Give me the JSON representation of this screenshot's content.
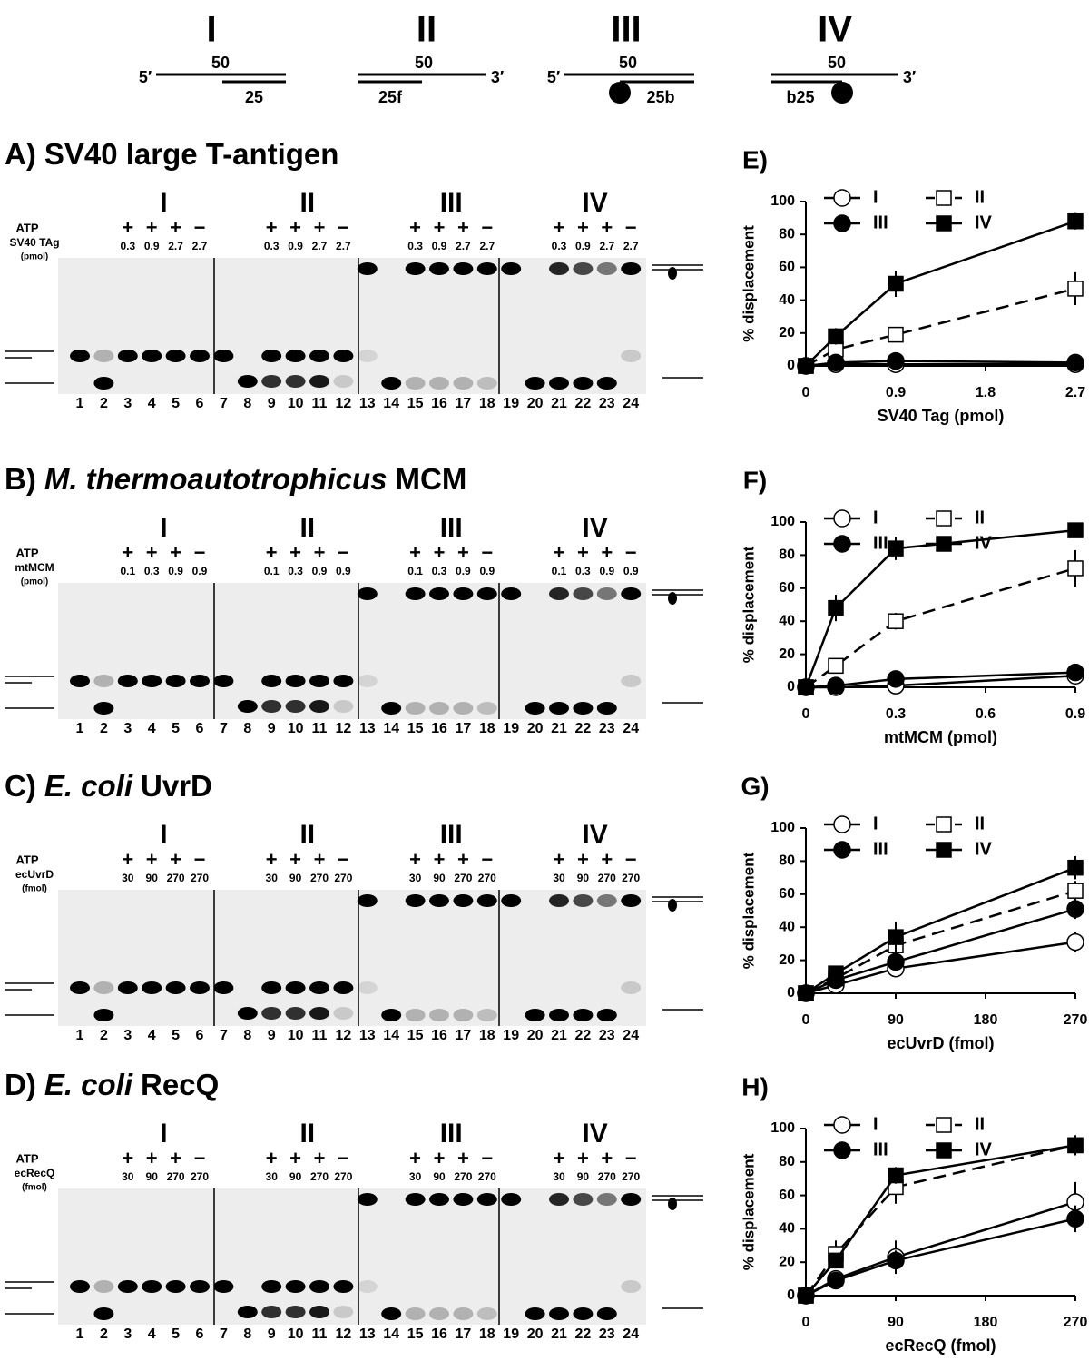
{
  "substrates": [
    {
      "label": "I",
      "five": "5′",
      "top": "50",
      "bottom": "25"
    },
    {
      "label": "II",
      "three": "3′",
      "top": "50",
      "bottom": "25f"
    },
    {
      "label": "III",
      "five": "5′",
      "top": "50",
      "bottom": "25b"
    },
    {
      "label": "IV",
      "three": "3′",
      "top": "50",
      "bottom": "b25"
    }
  ],
  "gel": {
    "groups": [
      "I",
      "II",
      "III",
      "IV"
    ],
    "atp": "ATP",
    "signs": [
      "+",
      "+",
      "+",
      "−"
    ],
    "lanes": [
      1,
      2,
      3,
      4,
      5,
      6,
      7,
      8,
      9,
      10,
      11,
      12,
      13,
      14,
      15,
      16,
      17,
      18,
      19,
      20,
      21,
      22,
      23,
      24
    ]
  },
  "panels": [
    {
      "letter": "A)",
      "title": "SV40 large T-antigen",
      "protein": "SV40 TAg",
      "unit": "(pmol)",
      "amounts": [
        "0.3",
        "0.9",
        "2.7",
        "2.7"
      ]
    },
    {
      "letter": "B)",
      "title_italic": "M. thermoautotrophicus",
      "title": "MCM",
      "protein": "mtMCM",
      "unit": "(pmol)",
      "amounts": [
        "0.1",
        "0.3",
        "0.9",
        "0.9"
      ]
    },
    {
      "letter": "C)",
      "title_italic": "E. coli",
      "title": "UvrD",
      "protein": "ecUvrD",
      "unit": "(fmol)",
      "amounts": [
        "30",
        "90",
        "270",
        "270"
      ]
    },
    {
      "letter": "D)",
      "title_italic": "E. coli",
      "title": "RecQ",
      "protein": "ecRecQ",
      "unit": "(fmol)",
      "amounts": [
        "30",
        "90",
        "270",
        "270"
      ]
    }
  ],
  "chart_data": [
    {
      "type": "line",
      "title": "E)",
      "xlabel": "SV40 Tag (pmol)",
      "ylabel": "% displacement",
      "x": [
        0,
        0.3,
        0.9,
        2.7
      ],
      "xlim": [
        0,
        2.7
      ],
      "xticks": [
        0,
        0.9,
        1.8,
        2.7
      ],
      "ylim": [
        0,
        100
      ],
      "yticks": [
        0,
        20,
        40,
        60,
        80,
        100
      ],
      "series": [
        {
          "name": "I",
          "color": "#000000",
          "marker": "circle",
          "filled": false,
          "dashed": false,
          "values": [
            0,
            1,
            1,
            1
          ],
          "errors": [
            0,
            1,
            1,
            1
          ]
        },
        {
          "name": "II",
          "color": "#000000",
          "marker": "square",
          "filled": false,
          "dashed": true,
          "values": [
            0,
            10,
            19,
            47
          ],
          "errors": [
            0,
            3,
            3,
            10
          ]
        },
        {
          "name": "III",
          "color": "#000000",
          "marker": "circle",
          "filled": true,
          "dashed": false,
          "values": [
            0,
            2,
            3,
            2
          ],
          "errors": [
            0,
            1,
            1,
            1
          ]
        },
        {
          "name": "IV",
          "color": "#000000",
          "marker": "square",
          "filled": true,
          "dashed": false,
          "values": [
            0,
            18,
            50,
            88
          ],
          "errors": [
            0,
            5,
            8,
            5
          ]
        }
      ]
    },
    {
      "type": "line",
      "title": "F)",
      "xlabel": "mtMCM (pmol)",
      "ylabel": "% displacement",
      "x": [
        0,
        0.1,
        0.3,
        0.9
      ],
      "xlim": [
        0,
        0.9
      ],
      "xticks": [
        0,
        0.3,
        0.6,
        0.9
      ],
      "ylim": [
        0,
        100
      ],
      "yticks": [
        0,
        20,
        40,
        60,
        80,
        100
      ],
      "series": [
        {
          "name": "I",
          "color": "#000000",
          "marker": "circle",
          "filled": false,
          "dashed": false,
          "values": [
            0,
            0,
            1,
            7
          ],
          "errors": [
            0,
            1,
            1,
            2
          ]
        },
        {
          "name": "II",
          "color": "#000000",
          "marker": "square",
          "filled": false,
          "dashed": true,
          "values": [
            0,
            13,
            40,
            72
          ],
          "errors": [
            0,
            3,
            5,
            11
          ]
        },
        {
          "name": "III",
          "color": "#000000",
          "marker": "circle",
          "filled": true,
          "dashed": false,
          "values": [
            0,
            1,
            5,
            9
          ],
          "errors": [
            0,
            1,
            2,
            2
          ]
        },
        {
          "name": "IV",
          "color": "#000000",
          "marker": "square",
          "filled": true,
          "dashed": false,
          "values": [
            0,
            48,
            84,
            95
          ],
          "errors": [
            0,
            8,
            7,
            2
          ]
        }
      ]
    },
    {
      "type": "line",
      "title": "G)",
      "xlabel": "ecUvrD (fmol)",
      "ylabel": "% displacement",
      "x": [
        0,
        30,
        90,
        270
      ],
      "xlim": [
        0,
        270
      ],
      "xticks": [
        0,
        90,
        180,
        270
      ],
      "ylim": [
        0,
        100
      ],
      "yticks": [
        0,
        20,
        40,
        60,
        80,
        100
      ],
      "series": [
        {
          "name": "I",
          "color": "#000000",
          "marker": "circle",
          "filled": false,
          "dashed": false,
          "values": [
            0,
            5,
            15,
            31
          ],
          "errors": [
            0,
            2,
            4,
            6
          ]
        },
        {
          "name": "II",
          "color": "#000000",
          "marker": "square",
          "filled": false,
          "dashed": true,
          "values": [
            0,
            9,
            29,
            62
          ],
          "errors": [
            0,
            2,
            5,
            6
          ]
        },
        {
          "name": "III",
          "color": "#000000",
          "marker": "circle",
          "filled": true,
          "dashed": false,
          "values": [
            0,
            8,
            19,
            51
          ],
          "errors": [
            0,
            2,
            4,
            6
          ]
        },
        {
          "name": "IV",
          "color": "#000000",
          "marker": "square",
          "filled": true,
          "dashed": false,
          "values": [
            0,
            12,
            34,
            76
          ],
          "errors": [
            0,
            2,
            9,
            7
          ]
        }
      ]
    },
    {
      "type": "line",
      "title": "H)",
      "xlabel": "ecRecQ (fmol)",
      "ylabel": "% displacement",
      "x": [
        0,
        30,
        90,
        270
      ],
      "xlim": [
        0,
        270
      ],
      "xticks": [
        0,
        90,
        180,
        270
      ],
      "ylim": [
        0,
        100
      ],
      "yticks": [
        0,
        20,
        40,
        60,
        80,
        100
      ],
      "series": [
        {
          "name": "I",
          "color": "#000000",
          "marker": "circle",
          "filled": false,
          "dashed": false,
          "values": [
            0,
            10,
            23,
            56
          ],
          "errors": [
            0,
            2,
            10,
            12
          ]
        },
        {
          "name": "II",
          "color": "#000000",
          "marker": "square",
          "filled": false,
          "dashed": true,
          "values": [
            0,
            25,
            65,
            90
          ],
          "errors": [
            0,
            8,
            10,
            6
          ]
        },
        {
          "name": "III",
          "color": "#000000",
          "marker": "circle",
          "filled": true,
          "dashed": false,
          "values": [
            0,
            9,
            21,
            46
          ],
          "errors": [
            0,
            2,
            6,
            8
          ]
        },
        {
          "name": "IV",
          "color": "#000000",
          "marker": "square",
          "filled": true,
          "dashed": false,
          "values": [
            0,
            21,
            72,
            90
          ],
          "errors": [
            0,
            4,
            5,
            6
          ]
        }
      ]
    }
  ]
}
